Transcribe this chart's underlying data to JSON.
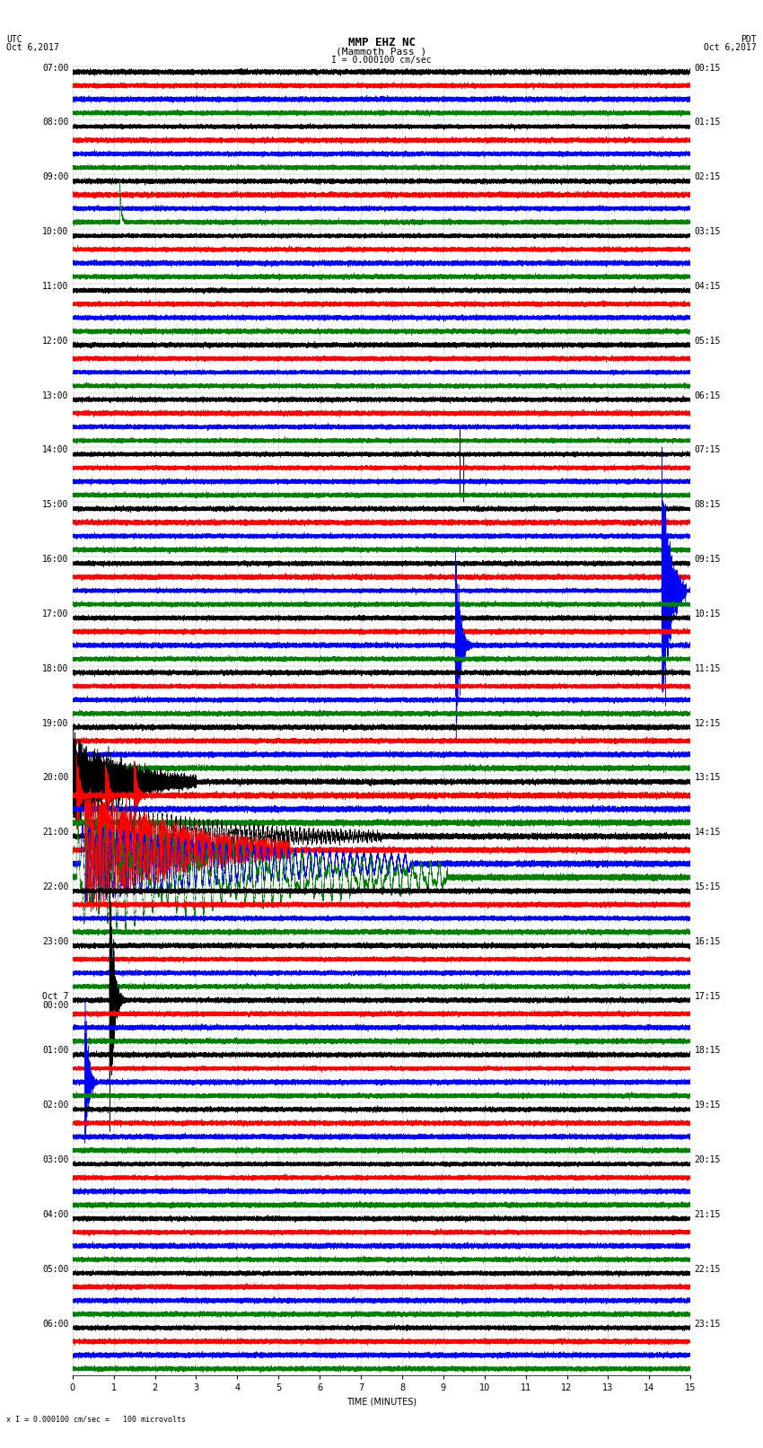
{
  "title_line1": "MMP EHZ NC",
  "title_line2": "(Mammoth Pass )",
  "scale_label": "I = 0.000100 cm/sec",
  "bottom_label": "x I = 0.000100 cm/sec =   100 microvolts",
  "utc_label": "UTC",
  "utc_date": "Oct 6,2017",
  "pdt_label": "PDT",
  "pdt_date": "Oct 6,2017",
  "xlabel": "TIME (MINUTES)",
  "left_times": [
    "07:00",
    "08:00",
    "09:00",
    "10:00",
    "11:00",
    "12:00",
    "13:00",
    "14:00",
    "15:00",
    "16:00",
    "17:00",
    "18:00",
    "19:00",
    "20:00",
    "21:00",
    "22:00",
    "23:00",
    "Oct 7\n00:00",
    "01:00",
    "02:00",
    "03:00",
    "04:00",
    "05:00",
    "06:00"
  ],
  "right_times": [
    "00:15",
    "01:15",
    "02:15",
    "03:15",
    "04:15",
    "05:15",
    "06:15",
    "07:15",
    "08:15",
    "09:15",
    "10:15",
    "11:15",
    "12:15",
    "13:15",
    "14:15",
    "15:15",
    "16:15",
    "17:15",
    "18:15",
    "19:15",
    "20:15",
    "21:15",
    "22:15",
    "23:15"
  ],
  "n_rows": 24,
  "traces_per_row": 4,
  "minutes": 15,
  "sample_rate": 50,
  "colors": [
    "black",
    "red",
    "blue",
    "green"
  ],
  "background_color": "white",
  "line_width": 0.35,
  "fig_width": 8.5,
  "fig_height": 16.13,
  "dpi": 100,
  "xlim": [
    0,
    15
  ],
  "xticks": [
    0,
    1,
    2,
    3,
    4,
    5,
    6,
    7,
    8,
    9,
    10,
    11,
    12,
    13,
    14,
    15
  ],
  "title_fontsize": 9,
  "label_fontsize": 7,
  "tick_fontsize": 7,
  "row_label_fontsize": 7
}
